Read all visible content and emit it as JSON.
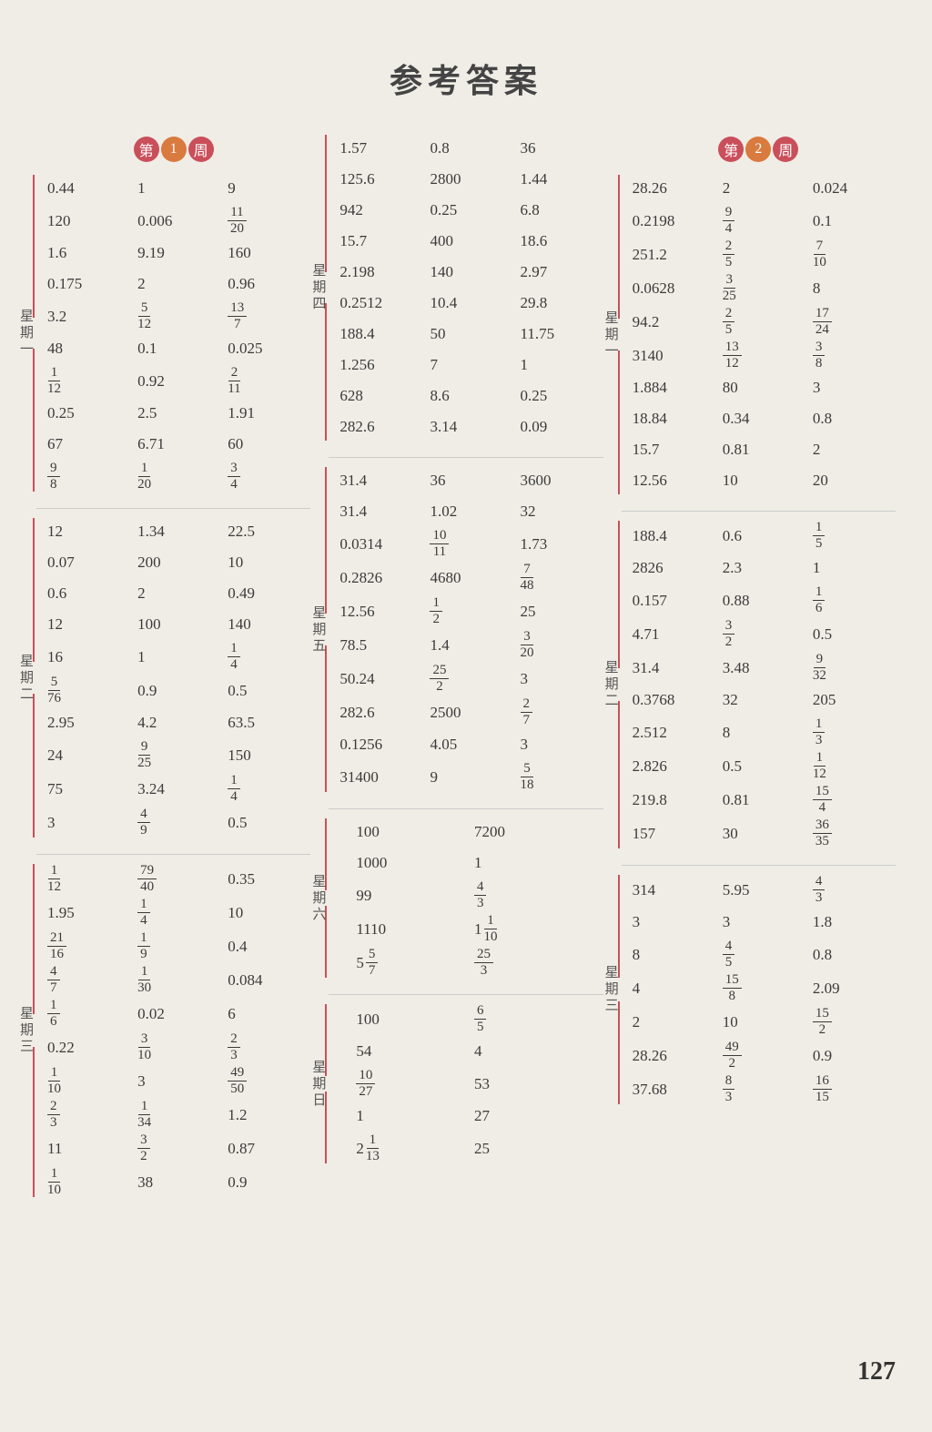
{
  "title": "参考答案",
  "pageNumber": "127",
  "weekBadges": {
    "char1": "第",
    "char2": "周",
    "week1": "1",
    "week2": "2"
  },
  "dayLabels": {
    "mon": "星期一",
    "tue": "星期二",
    "wed": "星期三",
    "thu": "星期四",
    "fri": "星期五",
    "sat": "星期六",
    "sun": "星期日"
  },
  "col1": {
    "mon": [
      [
        "0.44",
        "1",
        "9"
      ],
      [
        "120",
        "0.006",
        {
          "f": [
            "11",
            "20"
          ]
        }
      ],
      [
        "1.6",
        "9.19",
        "160"
      ],
      [
        "0.175",
        "2",
        "0.96"
      ],
      [
        "3.2",
        {
          "f": [
            "5",
            "12"
          ]
        },
        {
          "f": [
            "13",
            "7"
          ]
        }
      ],
      [
        "48",
        "0.1",
        "0.025"
      ],
      [
        {
          "f": [
            "1",
            "12"
          ]
        },
        "0.92",
        {
          "f": [
            "2",
            "11"
          ]
        }
      ],
      [
        "0.25",
        "2.5",
        "1.91"
      ],
      [
        "67",
        "6.71",
        "60"
      ],
      [
        {
          "f": [
            "9",
            "8"
          ]
        },
        {
          "f": [
            "1",
            "20"
          ]
        },
        {
          "f": [
            "3",
            "4"
          ]
        }
      ]
    ],
    "tue": [
      [
        "12",
        "1.34",
        "22.5"
      ],
      [
        "0.07",
        "200",
        "10"
      ],
      [
        "0.6",
        "2",
        "0.49"
      ],
      [
        "12",
        "100",
        "140"
      ],
      [
        "16",
        "1",
        {
          "f": [
            "1",
            "4"
          ]
        }
      ],
      [
        {
          "f": [
            "5",
            "76"
          ]
        },
        "0.9",
        "0.5"
      ],
      [
        "2.95",
        "4.2",
        "63.5"
      ],
      [
        "24",
        {
          "f": [
            "9",
            "25"
          ]
        },
        "150"
      ],
      [
        "75",
        "3.24",
        {
          "f": [
            "1",
            "4"
          ]
        }
      ],
      [
        "3",
        {
          "f": [
            "4",
            "9"
          ]
        },
        "0.5"
      ]
    ],
    "wed": [
      [
        {
          "f": [
            "1",
            "12"
          ]
        },
        {
          "f": [
            "79",
            "40"
          ]
        },
        "0.35"
      ],
      [
        "1.95",
        {
          "f": [
            "1",
            "4"
          ]
        },
        "10"
      ],
      [
        {
          "f": [
            "21",
            "16"
          ]
        },
        {
          "f": [
            "1",
            "9"
          ]
        },
        "0.4"
      ],
      [
        {
          "f": [
            "4",
            "7"
          ]
        },
        {
          "f": [
            "1",
            "30"
          ]
        },
        "0.084"
      ],
      [
        {
          "f": [
            "1",
            "6"
          ]
        },
        "0.02",
        "6"
      ],
      [
        "0.22",
        {
          "f": [
            "3",
            "10"
          ]
        },
        {
          "f": [
            "2",
            "3"
          ]
        }
      ],
      [
        {
          "f": [
            "1",
            "10"
          ]
        },
        "3",
        {
          "f": [
            "49",
            "50"
          ]
        }
      ],
      [
        {
          "f": [
            "2",
            "3"
          ]
        },
        {
          "f": [
            "1",
            "34"
          ]
        },
        "1.2"
      ],
      [
        "11",
        {
          "f": [
            "3",
            "2"
          ]
        },
        "0.87"
      ],
      [
        {
          "f": [
            "1",
            "10"
          ]
        },
        "38",
        "0.9"
      ]
    ]
  },
  "col2": {
    "thu": [
      [
        "1.57",
        "0.8",
        "36"
      ],
      [
        "125.6",
        "2800",
        "1.44"
      ],
      [
        "942",
        "0.25",
        "6.8"
      ],
      [
        "15.7",
        "400",
        "18.6"
      ],
      [
        "2.198",
        "140",
        "2.97"
      ],
      [
        "0.2512",
        "10.4",
        "29.8"
      ],
      [
        "188.4",
        "50",
        "11.75"
      ],
      [
        "1.256",
        "7",
        "1"
      ],
      [
        "628",
        "8.6",
        "0.25"
      ],
      [
        "282.6",
        "3.14",
        "0.09"
      ]
    ],
    "fri": [
      [
        "31.4",
        "36",
        "3600"
      ],
      [
        "31.4",
        "1.02",
        "32"
      ],
      [
        "0.0314",
        {
          "f": [
            "10",
            "11"
          ]
        },
        "1.73"
      ],
      [
        "0.2826",
        "4680",
        {
          "f": [
            "7",
            "48"
          ]
        }
      ],
      [
        "12.56",
        {
          "f": [
            "1",
            "2"
          ]
        },
        "25"
      ],
      [
        "78.5",
        "1.4",
        {
          "f": [
            "3",
            "20"
          ]
        }
      ],
      [
        "50.24",
        {
          "f": [
            "25",
            "2"
          ]
        },
        "3"
      ],
      [
        "282.6",
        "2500",
        {
          "f": [
            "2",
            "7"
          ]
        }
      ],
      [
        "0.1256",
        "4.05",
        "3"
      ],
      [
        "31400",
        "9",
        {
          "f": [
            "5",
            "18"
          ]
        }
      ]
    ],
    "sat": [
      [
        "100",
        "7200"
      ],
      [
        "1000",
        "1"
      ],
      [
        "99",
        {
          "f": [
            "4",
            "3"
          ]
        }
      ],
      [
        "1110",
        {
          "m": [
            "1",
            "1",
            "10"
          ]
        }
      ],
      [
        {
          "m": [
            "5",
            "5",
            "7"
          ]
        },
        {
          "f": [
            "25",
            "3"
          ]
        }
      ]
    ],
    "sun": [
      [
        "100",
        {
          "f": [
            "6",
            "5"
          ]
        }
      ],
      [
        "54",
        "4"
      ],
      [
        {
          "f": [
            "10",
            "27"
          ]
        },
        "53"
      ],
      [
        "1",
        "27"
      ],
      [
        {
          "m": [
            "2",
            "1",
            "13"
          ]
        },
        "25"
      ]
    ]
  },
  "col3": {
    "mon": [
      [
        "28.26",
        "2",
        "0.024"
      ],
      [
        "0.2198",
        {
          "f": [
            "9",
            "4"
          ]
        },
        "0.1"
      ],
      [
        "251.2",
        {
          "f": [
            "2",
            "5"
          ]
        },
        {
          "f": [
            "7",
            "10"
          ]
        }
      ],
      [
        "0.0628",
        {
          "f": [
            "3",
            "25"
          ]
        },
        "8"
      ],
      [
        "94.2",
        {
          "f": [
            "2",
            "5"
          ]
        },
        {
          "f": [
            "17",
            "24"
          ]
        }
      ],
      [
        "3140",
        {
          "f": [
            "13",
            "12"
          ]
        },
        {
          "f": [
            "3",
            "8"
          ]
        }
      ],
      [
        "1.884",
        "80",
        "3"
      ],
      [
        "18.84",
        "0.34",
        "0.8"
      ],
      [
        "15.7",
        "0.81",
        "2"
      ],
      [
        "12.56",
        "10",
        "20"
      ]
    ],
    "tue": [
      [
        "188.4",
        "0.6",
        {
          "f": [
            "1",
            "5"
          ]
        }
      ],
      [
        "2826",
        "2.3",
        "1"
      ],
      [
        "0.157",
        "0.88",
        {
          "f": [
            "1",
            "6"
          ]
        }
      ],
      [
        "4.71",
        {
          "f": [
            "3",
            "2"
          ]
        },
        "0.5"
      ],
      [
        "31.4",
        "3.48",
        {
          "f": [
            "9",
            "32"
          ]
        }
      ],
      [
        "0.3768",
        "32",
        "205"
      ],
      [
        "2.512",
        "8",
        {
          "f": [
            "1",
            "3"
          ]
        }
      ],
      [
        "2.826",
        "0.5",
        {
          "f": [
            "1",
            "12"
          ]
        }
      ],
      [
        "219.8",
        "0.81",
        {
          "f": [
            "15",
            "4"
          ]
        }
      ],
      [
        "157",
        "30",
        {
          "f": [
            "36",
            "35"
          ]
        }
      ]
    ],
    "wed": [
      [
        "314",
        "5.95",
        {
          "f": [
            "4",
            "3"
          ]
        }
      ],
      [
        "3",
        "3",
        "1.8"
      ],
      [
        "8",
        {
          "f": [
            "4",
            "5"
          ]
        },
        "0.8"
      ],
      [
        "4",
        {
          "f": [
            "15",
            "8"
          ]
        },
        "2.09"
      ],
      [
        "2",
        "10",
        {
          "f": [
            "15",
            "2"
          ]
        }
      ],
      [
        "28.26",
        {
          "f": [
            "49",
            "2"
          ]
        },
        "0.9"
      ],
      [
        "37.68",
        {
          "f": [
            "8",
            "3"
          ]
        },
        {
          "f": [
            "16",
            "15"
          ]
        }
      ]
    ]
  }
}
